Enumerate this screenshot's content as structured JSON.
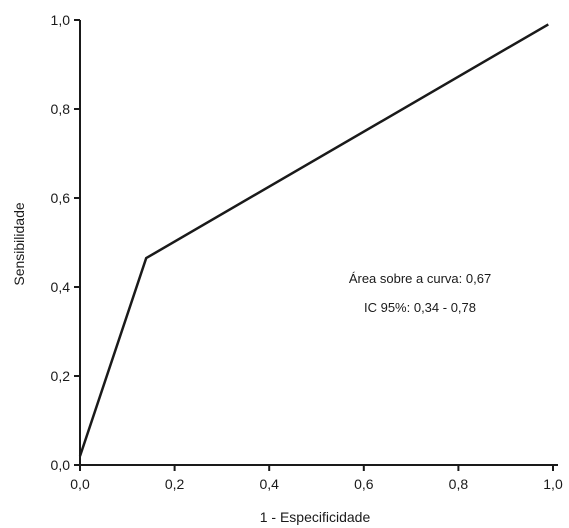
{
  "chart_data": {
    "type": "line",
    "title": "",
    "xlabel": "1 - Especificidade",
    "ylabel": "Sensibilidade",
    "xlim": [
      0,
      1
    ],
    "ylim": [
      0,
      1
    ],
    "xticks": [
      "0,0",
      "0,2",
      "0,4",
      "0,6",
      "0,8",
      "1,0"
    ],
    "yticks": [
      "0,0",
      "0,2",
      "0,4",
      "0,6",
      "0,8",
      "1,0"
    ],
    "grid": false,
    "series": [
      {
        "x": [
          0.0,
          0.14,
          0.99
        ],
        "y": [
          0.02,
          0.465,
          0.99
        ]
      }
    ],
    "annotations": [
      "Área sobre a curva: 0,67",
      "IC 95%: 0,34 - 0,78"
    ],
    "line_color": "#1a1a1a"
  }
}
